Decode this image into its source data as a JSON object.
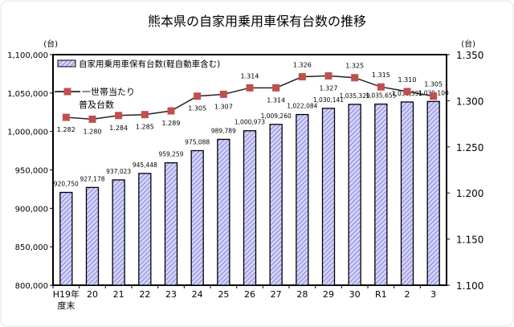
{
  "chart_data": {
    "type": "bar+line",
    "title": "熊本県の自家用乗用車保有台数の推移",
    "ylabel_left": "(台)",
    "ylabel_right": "(台)",
    "categories": [
      "H19年\n度末",
      "20",
      "21",
      "22",
      "23",
      "24",
      "25",
      "26",
      "27",
      "28",
      "29",
      "30",
      "R1",
      "2",
      "3"
    ],
    "left_axis": {
      "ylim": [
        800000,
        1100000
      ],
      "ticks": [
        "800,000",
        "850,000",
        "900,000",
        "950,000",
        "1,000,000",
        "1,050,000",
        "1,100,000"
      ]
    },
    "right_axis": {
      "ylim": [
        1.1,
        1.35
      ],
      "ticks": [
        "1.100",
        "1.150",
        "1.200",
        "1.250",
        "1.300",
        "1.350"
      ]
    },
    "series": [
      {
        "name": "自家用乗用車保有台数(軽自動車含む)",
        "type": "bar",
        "axis": "left",
        "values": [
          920750,
          927178,
          937023,
          945448,
          959259,
          975088,
          989789,
          1000973,
          1009260,
          1022084,
          1030141,
          1035329,
          1035655,
          1038391,
          1039100
        ],
        "labels": [
          "920,750",
          "927,178",
          "937,023",
          "945,448",
          "959,259",
          "975,088",
          "989,789",
          "1,000,973",
          "1,009,260",
          "1,022,084",
          "1,030,141",
          "1,035,329",
          "1,035,655",
          "1,038,391",
          "1,039,100"
        ]
      },
      {
        "name": "一世帯当たり\n普及台数",
        "type": "line",
        "axis": "right",
        "values": [
          1.282,
          1.28,
          1.284,
          1.285,
          1.289,
          1.305,
          1.307,
          1.314,
          1.314,
          1.326,
          1.327,
          1.325,
          1.315,
          1.31,
          1.305
        ],
        "labels": [
          "1.282",
          "1.280",
          "1.284",
          "1.285",
          "1.289",
          "1.305",
          "1.307",
          "1.314",
          "1.314",
          "1.326",
          "1.327",
          "1.325",
          "1.315",
          "1.310",
          "1.305"
        ],
        "label_side": [
          "below",
          "below",
          "below",
          "below",
          "below",
          "below",
          "below",
          "above",
          "below",
          "above",
          "below",
          "above",
          "above",
          "above",
          "above"
        ]
      }
    ],
    "legend_position": "top-left",
    "grid": false
  },
  "colors": {
    "bar_fill": "#c8c8f5",
    "bar_hatch": "#7070d8",
    "line": "#222222",
    "marker": "#c0504d"
  }
}
